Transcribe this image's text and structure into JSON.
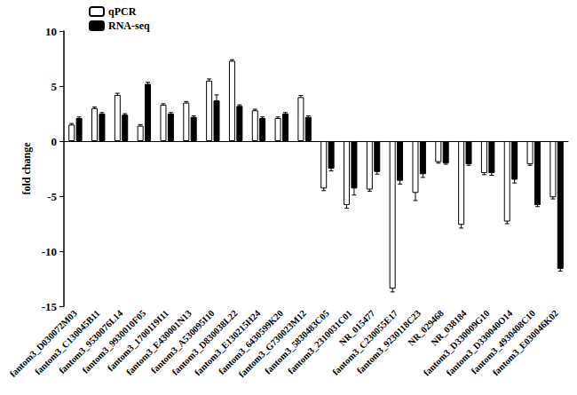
{
  "chart_data": {
    "type": "bar",
    "y_label": "fold change",
    "categories": [
      "fantom3_D030072M03",
      "fantom3_C130045B11",
      "fantom3_9530076L14",
      "fantom3_9930010F05",
      "fantom3_1700119I11",
      "fantom3_E430001N13",
      "fantom3_A530095I10",
      "fantom3_D830038L22",
      "fantom3_E130215H24",
      "fantom3_6430599K20",
      "fantom3_G730023M12",
      "fantom3_5830483C05",
      "fantom3_2310031C01",
      "NR_015477",
      "fantom3_C230055E17",
      "fantom3_9230118C23",
      "NR_029468",
      "NR_038184",
      "fantom3_D330009G10",
      "fantom3_D330040O14",
      "fantom3_4930408C10",
      "fantom3_E030046K02"
    ],
    "series": [
      {
        "name": "qPCR",
        "color": "#ffffff",
        "values": [
          1.5,
          3.0,
          4.2,
          1.4,
          3.3,
          3.5,
          5.5,
          7.3,
          2.8,
          2.1,
          4.0,
          -4.3,
          -5.8,
          -4.4,
          -13.4,
          -4.7,
          -1.9,
          -7.6,
          -2.9,
          -7.3,
          -2.1,
          -5.1
        ],
        "errors": [
          0.1,
          0.1,
          0.15,
          0.1,
          0.1,
          0.1,
          0.15,
          0.1,
          0.1,
          0.1,
          0.15,
          0.2,
          0.3,
          0.15,
          0.3,
          0.7,
          0.1,
          0.3,
          0.15,
          0.2,
          0.1,
          0.15
        ]
      },
      {
        "name": "RNA-seq",
        "color": "#000000",
        "values": [
          2.1,
          2.5,
          2.4,
          5.2,
          2.5,
          2.2,
          3.7,
          3.2,
          2.1,
          2.5,
          2.2,
          -2.5,
          -4.3,
          -2.8,
          -3.6,
          -3.0,
          -2.0,
          -2.1,
          -2.9,
          -3.5,
          -5.8,
          -11.6
        ],
        "errors": [
          0.1,
          0.1,
          0.1,
          0.15,
          0.1,
          0.1,
          0.5,
          0.1,
          0.1,
          0.1,
          0.1,
          0.2,
          0.6,
          0.2,
          0.3,
          0.3,
          0.1,
          0.1,
          0.2,
          0.3,
          0.15,
          0.2
        ]
      }
    ],
    "ylim": [
      -15,
      10
    ],
    "yticks": [
      -15,
      -10,
      -5,
      0,
      5,
      10
    ],
    "grid": false,
    "legend": "top-left"
  }
}
